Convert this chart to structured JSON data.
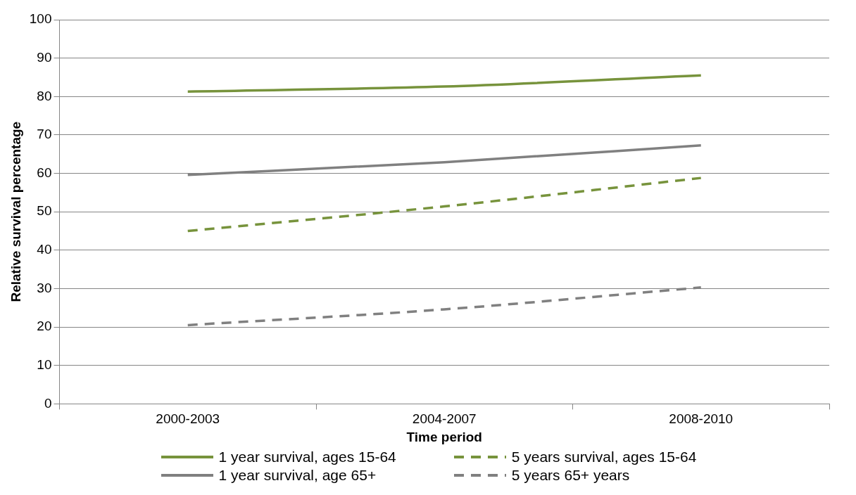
{
  "chart_data": {
    "type": "line",
    "xlabel": "Time period",
    "ylabel": "Relative survival percentage",
    "categories": [
      "2000-2003",
      "2004-2007",
      "2008-2010"
    ],
    "series": [
      {
        "name": "1 year survival, ages 15-64",
        "color": "#77933c",
        "line_style": "solid",
        "values": [
          81.3,
          82.6,
          85.5
        ]
      },
      {
        "name": "5 years survival, ages 15-64",
        "color": "#77933c",
        "line_style": "dashed",
        "values": [
          45.0,
          51.4,
          58.8
        ]
      },
      {
        "name": "1 year survival, age 65+",
        "color": "#808080",
        "line_style": "solid",
        "values": [
          59.6,
          62.9,
          67.3
        ]
      },
      {
        "name": "5 years 65+ years",
        "color": "#808080",
        "line_style": "dashed",
        "values": [
          20.5,
          24.6,
          30.3
        ]
      }
    ],
    "ylim": [
      0,
      100
    ],
    "yticks": [
      0,
      10,
      20,
      30,
      40,
      50,
      60,
      70,
      80,
      90,
      100
    ],
    "grid": "y",
    "legend": "bottom",
    "marker": "none"
  }
}
